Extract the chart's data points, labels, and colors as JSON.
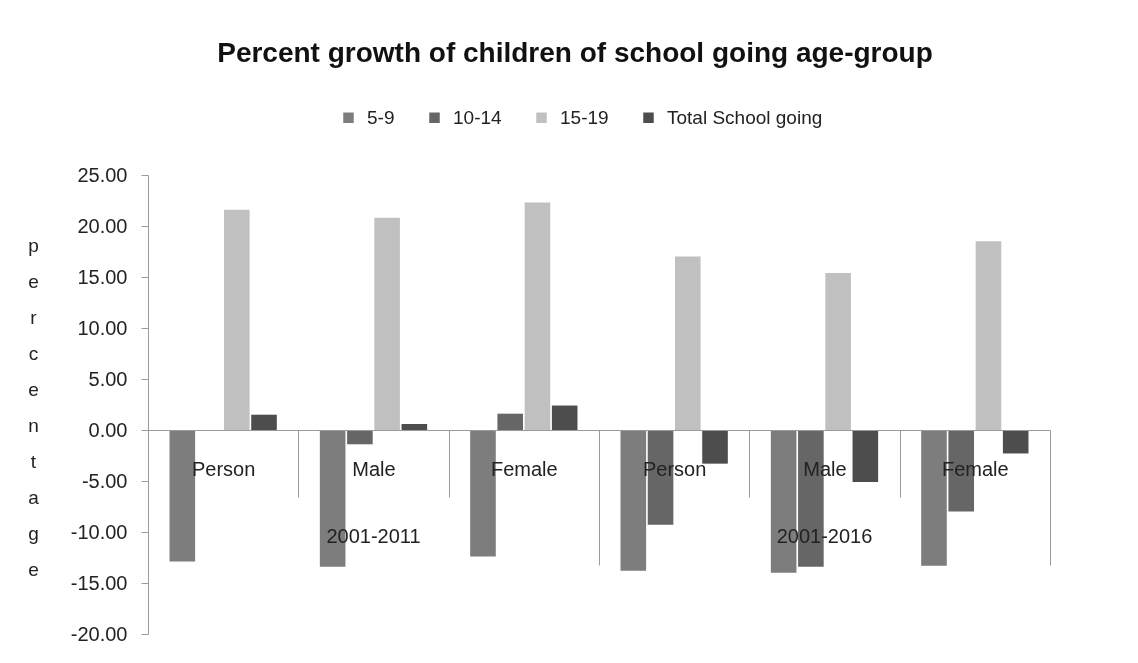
{
  "chart_data": {
    "type": "bar",
    "title": "Percent growth of children of school going age-group",
    "ylabel": "percentage",
    "categories": [
      "Person",
      "Male",
      "Female",
      "Person",
      "Male",
      "Female"
    ],
    "series": [
      {
        "name": "5-9",
        "color": "#7d7d7d",
        "values": [
          -12.9,
          -13.4,
          -12.4,
          -13.8,
          -14.0,
          -13.3
        ]
      },
      {
        "name": "10-14",
        "color": "#666666",
        "values": [
          null,
          -1.4,
          1.6,
          -9.3,
          -13.4,
          -8.0
        ]
      },
      {
        "name": "15-19",
        "color": "#c0c0c0",
        "values": [
          21.6,
          20.8,
          22.3,
          17.0,
          15.4,
          18.5
        ]
      },
      {
        "name": "Total School going",
        "color": "#4d4d4d",
        "values": [
          1.5,
          0.6,
          2.4,
          -3.3,
          -5.1,
          -2.3
        ]
      }
    ],
    "ylim": [
      -20,
      25
    ],
    "yticks": [
      {
        "value": -20,
        "label": "-20.00"
      },
      {
        "value": -15,
        "label": "-15.00"
      },
      {
        "value": -10,
        "label": "-10.00"
      },
      {
        "value": -5,
        "label": "-5.00"
      },
      {
        "value": 0,
        "label": "0.00"
      },
      {
        "value": 5,
        "label": "5.00"
      },
      {
        "value": 10,
        "label": "10.00"
      },
      {
        "value": 15,
        "label": "15.00"
      },
      {
        "value": 20,
        "label": "20.00"
      },
      {
        "value": 25,
        "label": "25.00"
      }
    ],
    "legend": "top",
    "annotations": [
      "2001-2011",
      "2001-2016"
    ]
  }
}
